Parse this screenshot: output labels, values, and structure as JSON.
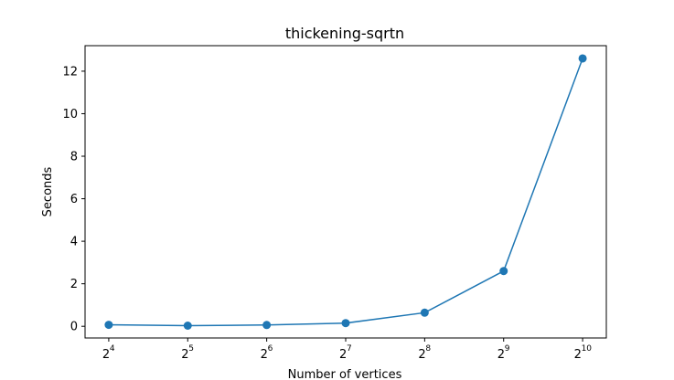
{
  "chart_data": {
    "type": "line",
    "title": "thickening-sqrtn",
    "xlabel": "Number of vertices",
    "ylabel": "Seconds",
    "x_scale": "log2",
    "x_tick_base": "2",
    "x_tick_exponents": [
      "4",
      "5",
      "6",
      "7",
      "8",
      "9",
      "10"
    ],
    "x": [
      16,
      32,
      64,
      128,
      256,
      512,
      1024
    ],
    "series": [
      {
        "values": [
          0.07,
          0.03,
          0.06,
          0.15,
          0.64,
          2.6,
          12.6
        ],
        "color": "#1f77b4",
        "marker": "circle"
      }
    ],
    "y_ticks": [
      "0",
      "2",
      "4",
      "6",
      "8",
      "10",
      "12"
    ],
    "ylim": [
      -0.55,
      13.2
    ],
    "grid": false,
    "legend": "none"
  }
}
